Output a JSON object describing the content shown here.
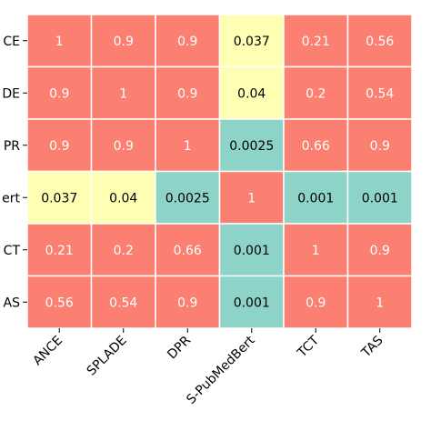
{
  "chart_data": {
    "type": "heatmap",
    "title": "",
    "xlabel": "",
    "ylabel": "",
    "x_categories": [
      "ANCE",
      "SPLADE",
      "DPR",
      "S-PubMedBert",
      "TCT",
      "TAS"
    ],
    "y_tick_labels": [
      "CE",
      "DE",
      "PR",
      "ert",
      "CT",
      "AS"
    ],
    "values": [
      [
        1,
        0.9,
        0.9,
        0.037,
        0.21,
        0.56
      ],
      [
        0.9,
        1,
        0.9,
        0.04,
        0.2,
        0.54
      ],
      [
        0.9,
        0.9,
        1,
        0.0025,
        0.66,
        0.9
      ],
      [
        0.037,
        0.04,
        0.0025,
        1,
        0.001,
        0.001
      ],
      [
        0.21,
        0.2,
        0.66,
        0.001,
        1,
        0.9
      ],
      [
        0.56,
        0.54,
        0.9,
        0.001,
        0.9,
        1
      ]
    ],
    "cell_labels": [
      [
        "1",
        "0.9",
        "0.9",
        "0.037",
        "0.21",
        "0.56"
      ],
      [
        "0.9",
        "1",
        "0.9",
        "0.04",
        "0.2",
        "0.54"
      ],
      [
        "0.9",
        "0.9",
        "1",
        "0.0025",
        "0.66",
        "0.9"
      ],
      [
        "0.037",
        "0.04",
        "0.0025",
        "1",
        "0.001",
        "0.001"
      ],
      [
        "0.21",
        "0.2",
        "0.66",
        "0.001",
        "1",
        "0.9"
      ],
      [
        "0.56",
        "0.54",
        "0.9",
        "0.001",
        "0.9",
        "1"
      ]
    ],
    "colors": {
      "high": "#fb8072",
      "mid": "#ffffb3",
      "low": "#8dd3c7",
      "text_dark_bg": "#ffffff",
      "text_light_bg": "#000000",
      "gridline": "#ffffff"
    },
    "color_thresholds": {
      "low_below": 0.01,
      "mid_below": 0.1
    },
    "grid": false,
    "legend": "none"
  }
}
